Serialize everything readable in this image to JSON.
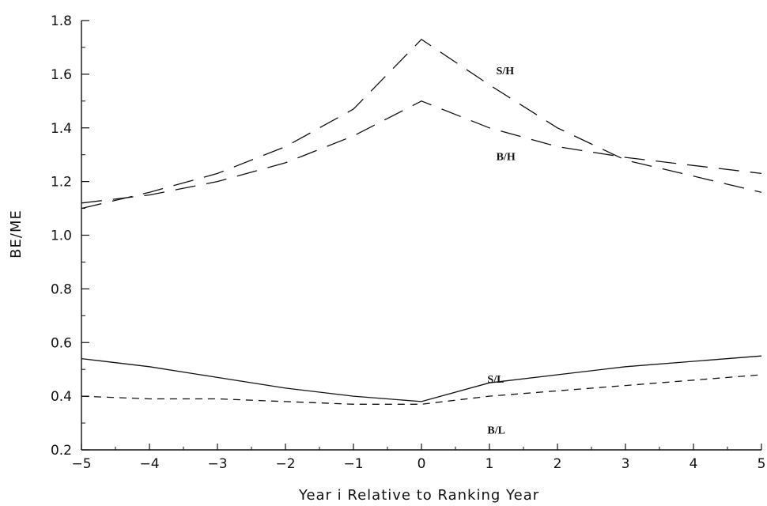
{
  "chart_data": {
    "type": "line",
    "title": "",
    "xlabel": "Year i Relative to Ranking Year",
    "ylabel": "BE/ME",
    "xlim": [
      -5,
      5
    ],
    "ylim": [
      0.2,
      1.8
    ],
    "x": [
      -5,
      -4,
      -3,
      -2,
      -1,
      0,
      1,
      2,
      3,
      4,
      5
    ],
    "x_tick_labels": [
      "−5",
      "−4",
      "−3",
      "−2",
      "−1",
      "0",
      "1",
      "2",
      "3",
      "4",
      "5"
    ],
    "y_ticks": [
      0.2,
      0.4,
      0.6,
      0.8,
      1.0,
      1.2,
      1.4,
      1.6,
      1.8
    ],
    "y_tick_labels": [
      "0.2",
      "0.4",
      "0.6",
      "0.8",
      "1.0",
      "1.2",
      "1.4",
      "1.6",
      "1.8"
    ],
    "grid": false,
    "legend": "labels placed next to lines",
    "series": [
      {
        "name": "S/H",
        "style": "long-dash",
        "values": [
          1.1,
          1.16,
          1.23,
          1.33,
          1.47,
          1.73,
          1.56,
          1.4,
          1.28,
          1.22,
          1.16
        ]
      },
      {
        "name": "B/H",
        "style": "long-dash",
        "values": [
          1.12,
          1.15,
          1.2,
          1.27,
          1.37,
          1.5,
          1.4,
          1.33,
          1.29,
          1.26,
          1.23
        ]
      },
      {
        "name": "S/L",
        "style": "solid",
        "values": [
          0.54,
          0.51,
          0.47,
          0.43,
          0.4,
          0.38,
          0.45,
          0.48,
          0.51,
          0.53,
          0.55
        ]
      },
      {
        "name": "B/L",
        "style": "short-dash",
        "values": [
          0.4,
          0.39,
          0.39,
          0.38,
          0.37,
          0.37,
          0.4,
          0.42,
          0.44,
          0.46,
          0.48
        ]
      }
    ]
  }
}
